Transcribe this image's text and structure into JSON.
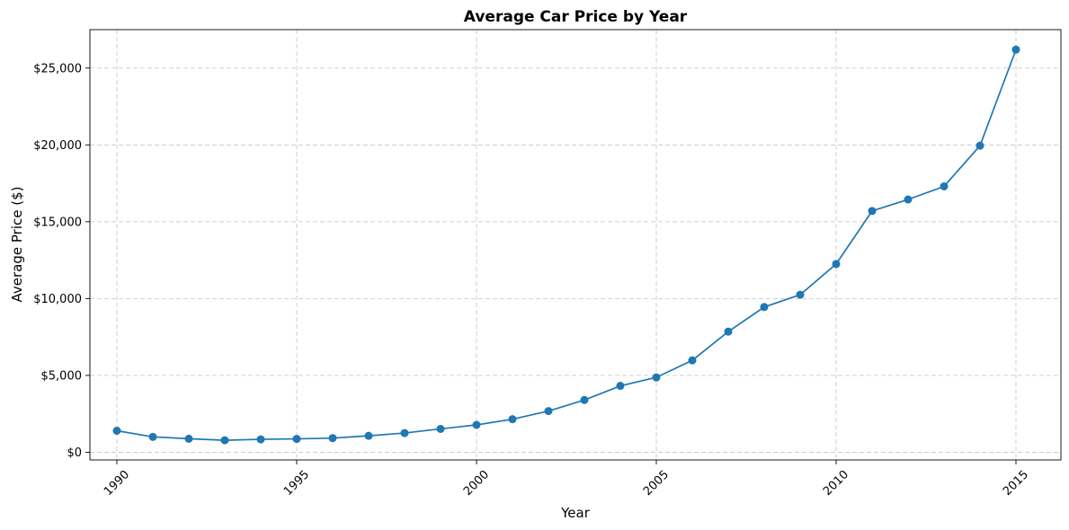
{
  "chart_data": {
    "type": "line",
    "title": "Average Car Price by Year",
    "xlabel": "Year",
    "ylabel": "Average Price ($)",
    "x": [
      1990,
      1991,
      1992,
      1993,
      1994,
      1995,
      1996,
      1997,
      1998,
      1999,
      2000,
      2001,
      2002,
      2003,
      2004,
      2005,
      2006,
      2007,
      2008,
      2009,
      2010,
      2011,
      2012,
      2013,
      2014,
      2015
    ],
    "series": [
      {
        "values": [
          1400,
          1000,
          880,
          780,
          840,
          870,
          920,
          1070,
          1250,
          1520,
          1780,
          2150,
          2680,
          3400,
          4320,
          4870,
          5980,
          7850,
          9450,
          10250,
          12250,
          15700,
          16450,
          17300,
          19950,
          26200
        ],
        "color": "#1f77b4"
      }
    ],
    "xlim": [
      1989.25,
      2016.25
    ],
    "ylim": [
      -500,
      27500
    ],
    "xticks": [
      1990,
      1995,
      2000,
      2005,
      2010,
      2015
    ],
    "xtick_labels": [
      "1990",
      "1995",
      "2000",
      "2005",
      "2010",
      "2015"
    ],
    "yticks": [
      0,
      5000,
      10000,
      15000,
      20000,
      25000
    ],
    "ytick_labels": [
      "$0",
      "$5,000",
      "$10,000",
      "$15,000",
      "$20,000",
      "$25,000"
    ],
    "grid": true,
    "marker": "circle"
  }
}
